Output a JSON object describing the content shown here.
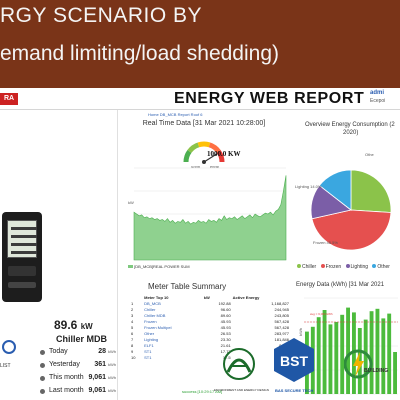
{
  "slide": {
    "title_line1": "RGY SCENARIO  BY",
    "title_line2": "emand limiting/load shedding)"
  },
  "report": {
    "title": "ENERGY WEB REPORT",
    "logo_text": "RA",
    "admin_label": "admi",
    "admin_sub": "Ecepoi"
  },
  "realtime": {
    "tabs": "Home   DB_MCB   Report   Roof 6",
    "title": "Real Time Data [31 Mar 2021 10:28:00]",
    "gauge_value": "1000.0 KW",
    "gauge_good": "GOOD",
    "gauge_poor": "POOR",
    "ylabel": "kW",
    "legend": "[DB_MCB]REAL POWER SUM"
  },
  "device": {
    "value": "89.6",
    "unit": "kW",
    "meter_name": "Chiller MDB",
    "stats": [
      {
        "label": "Today",
        "value": "28",
        "unit": "kWh"
      },
      {
        "label": "Yesterday",
        "value": "361",
        "unit": "kWh"
      },
      {
        "label": "This month",
        "value": "9,061",
        "unit": "kWh"
      },
      {
        "label": "Last month",
        "value": "9,061",
        "unit": "kWh"
      }
    ],
    "footer_text": "LIST"
  },
  "pie": {
    "title": "Overview Energy Consumption (2",
    "title2": "2020)",
    "labels": {
      "other": "Othe",
      "lighting": "Lighting 14.0%",
      "frozen": "Frozen 45.5%"
    },
    "legend": [
      {
        "name": "Chiller",
        "color": "#8bc34a"
      },
      {
        "name": "Frozen",
        "color": "#e5504f"
      },
      {
        "name": "Lighting",
        "color": "#7b5ea7"
      },
      {
        "name": "Other",
        "color": "#3aa7e0"
      }
    ]
  },
  "table": {
    "title": "Meter Table Summary",
    "headers": [
      "",
      "Meter Top 10",
      "kW",
      "Active Energy"
    ],
    "rows": [
      [
        "1",
        "DB_MCB",
        "192.88",
        "1,168,827"
      ],
      [
        "2",
        "Chiller",
        "96.60",
        "244,945"
      ],
      [
        "3",
        "Chiller MDB",
        "89.60",
        "243,805"
      ],
      [
        "4",
        "Frozen",
        "45.93",
        "567,428"
      ],
      [
        "5",
        "Frozen Multipel",
        "45.93",
        "567,428"
      ],
      [
        "6",
        "Other",
        "26.53",
        "283,977"
      ],
      [
        "7",
        "Lighting",
        "23.30",
        "181,846"
      ],
      [
        "8",
        "ELF1",
        "21.61",
        "8,950"
      ],
      [
        "9",
        "ST1",
        "17.73",
        "102,063"
      ],
      [
        "10",
        "ST1",
        "17.5",
        ""
      ]
    ],
    "success": "success [10:29:17 AM]"
  },
  "bars": {
    "title": "Energy Data (kWh) [31 Mar 2021",
    "ylabel": "kWh",
    "threshold_label": "avg = 6,000 kWh"
  },
  "logos": {
    "e_text": "ENVIRONMENT AND ENERGY DESIGN",
    "bst_name": "BST",
    "bst_text": "BAS SECURE TECH",
    "b_text": "BUILDING"
  },
  "chart_data": [
    {
      "type": "area",
      "title": "Real Time Data [31 Mar 2021 10:28:00]",
      "ylabel": "kW",
      "series": [
        {
          "name": "[DB_MCB]REAL POWER SUM",
          "values": [
            52,
            50,
            48,
            49,
            46,
            47,
            45,
            46,
            44,
            45,
            43,
            44,
            42,
            45,
            41,
            43,
            40,
            42,
            41,
            44,
            40,
            42,
            39,
            41,
            40,
            43,
            41,
            42,
            40,
            44,
            42,
            43,
            41,
            45,
            43,
            48,
            44,
            46,
            45,
            47,
            44,
            46,
            48,
            45,
            47,
            49,
            46,
            50,
            48,
            47,
            49,
            51,
            50,
            52,
            49,
            53,
            55,
            60,
            75,
            92
          ]
        }
      ]
    },
    {
      "type": "pie",
      "title": "Overview Energy Consumption",
      "categories": [
        "Chiller",
        "Frozen",
        "Lighting",
        "Other"
      ],
      "values": [
        26.0,
        45.5,
        14.0,
        14.5
      ]
    },
    {
      "type": "bar",
      "title": "Energy Data (kWh) [31 Mar 2021",
      "ylabel": "kWh",
      "values": [
        5.2,
        5.6,
        6.4,
        7.0,
        5.8,
        6.0,
        6.6,
        7.2,
        6.8,
        5.5,
        6.2,
        6.9,
        7.1,
        6.3,
        6.7,
        3.5
      ]
    }
  ]
}
